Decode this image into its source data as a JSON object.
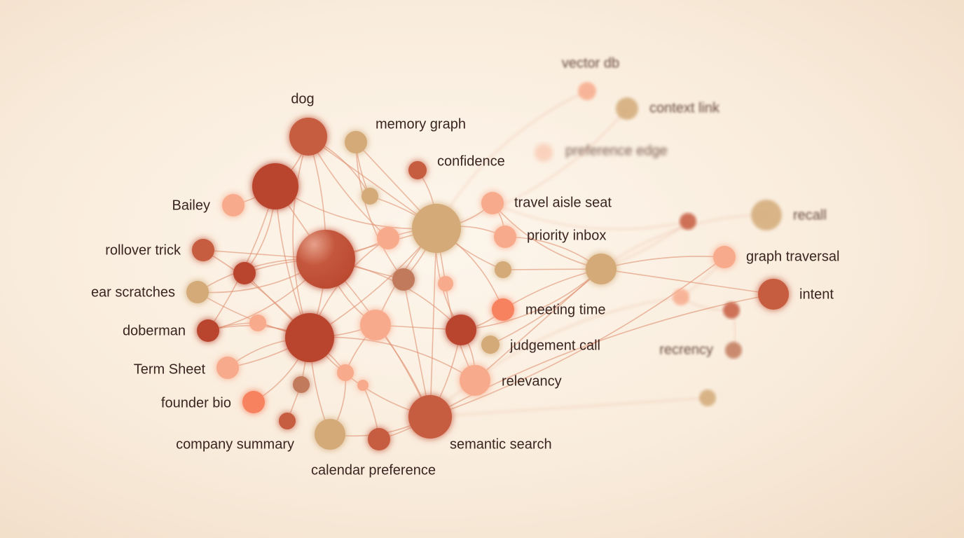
{
  "palette": {
    "rust": "#b9442e",
    "terracotta": "#c65b40",
    "salmon": "#f8ab8c",
    "orange": "#f6825f",
    "tan": "#d3aa78",
    "brown": "#c27a5c",
    "edge": "#e0906f"
  },
  "nodes": [
    {
      "id": "dog",
      "label": "dog",
      "tone": "terracotta"
    },
    {
      "id": "n1",
      "label": "",
      "tone": "rust"
    },
    {
      "id": "memory-graph",
      "label": "memory graph",
      "tone": "tan"
    },
    {
      "id": "confidence",
      "label": "confidence",
      "tone": "terracotta"
    },
    {
      "id": "n4",
      "label": "",
      "tone": "tan"
    },
    {
      "id": "bailey",
      "label": "Bailey",
      "tone": "salmon"
    },
    {
      "id": "n6",
      "label": "",
      "tone": "rust"
    },
    {
      "id": "n7",
      "label": "",
      "tone": "tan"
    },
    {
      "id": "n8",
      "label": "",
      "tone": "salmon"
    },
    {
      "id": "travel-aisle-seat",
      "label": "travel aisle seat",
      "tone": "salmon"
    },
    {
      "id": "priority-inbox",
      "label": "priority inbox",
      "tone": "salmon"
    },
    {
      "id": "rollover-trick",
      "label": "rollover trick",
      "tone": "terracotta"
    },
    {
      "id": "n12",
      "label": "",
      "tone": "rust"
    },
    {
      "id": "ear-scratches",
      "label": "ear scratches",
      "tone": "tan"
    },
    {
      "id": "n14",
      "label": "",
      "tone": "brown"
    },
    {
      "id": "n15",
      "label": "",
      "tone": "salmon"
    },
    {
      "id": "n16",
      "label": "",
      "tone": "tan"
    },
    {
      "id": "n17",
      "label": "",
      "tone": "rust"
    },
    {
      "id": "doberman",
      "label": "doberman",
      "tone": "rust"
    },
    {
      "id": "n19",
      "label": "",
      "tone": "salmon"
    },
    {
      "id": "n20",
      "label": "",
      "tone": "salmon"
    },
    {
      "id": "n21",
      "label": "",
      "tone": "rust"
    },
    {
      "id": "meeting-time",
      "label": "meeting time",
      "tone": "orange"
    },
    {
      "id": "judgement-call",
      "label": "judgement call",
      "tone": "tan"
    },
    {
      "id": "term-sheet",
      "label": "Term Sheet",
      "tone": "salmon"
    },
    {
      "id": "n25",
      "label": "",
      "tone": "salmon"
    },
    {
      "id": "n26",
      "label": "",
      "tone": "salmon"
    },
    {
      "id": "n27",
      "label": "",
      "tone": "brown"
    },
    {
      "id": "relevancy",
      "label": "relevancy",
      "tone": "salmon"
    },
    {
      "id": "founder-bio",
      "label": "founder bio",
      "tone": "orange"
    },
    {
      "id": "n30",
      "label": "",
      "tone": "terracotta"
    },
    {
      "id": "company-summary",
      "label": "company summary",
      "tone": "tan"
    },
    {
      "id": "calendar-preference",
      "label": "calendar preference",
      "tone": "terracotta"
    },
    {
      "id": "semantic-search",
      "label": "semantic search",
      "tone": "terracotta"
    },
    {
      "id": "n34",
      "label": "",
      "tone": "tan"
    },
    {
      "id": "vector-db",
      "label": "vector db",
      "tone": "salmon"
    },
    {
      "id": "context-link",
      "label": "context link",
      "tone": "tan"
    },
    {
      "id": "preference-edge",
      "label": "preference edge",
      "tone": "salmon"
    },
    {
      "id": "n38",
      "label": "",
      "tone": "terracotta"
    },
    {
      "id": "recall",
      "label": "recall",
      "tone": "tan"
    },
    {
      "id": "graph-traversal",
      "label": "graph traversal",
      "tone": "salmon"
    },
    {
      "id": "intent",
      "label": "intent",
      "tone": "terracotta"
    },
    {
      "id": "n42",
      "label": "",
      "tone": "salmon"
    },
    {
      "id": "n43",
      "label": "",
      "tone": "terracotta"
    },
    {
      "id": "recrency",
      "label": "recrency",
      "tone": "brown"
    },
    {
      "id": "n45",
      "label": "",
      "tone": "tan"
    }
  ],
  "edges": [
    [
      0,
      1
    ],
    [
      0,
      6
    ],
    [
      0,
      7
    ],
    [
      0,
      8
    ],
    [
      0,
      17
    ],
    [
      0,
      4
    ],
    [
      1,
      5
    ],
    [
      1,
      6
    ],
    [
      1,
      17
    ],
    [
      1,
      7
    ],
    [
      1,
      12
    ],
    [
      1,
      18
    ],
    [
      2,
      7
    ],
    [
      2,
      4
    ],
    [
      2,
      14
    ],
    [
      3,
      7
    ],
    [
      4,
      7
    ],
    [
      6,
      11
    ],
    [
      6,
      12
    ],
    [
      6,
      13
    ],
    [
      6,
      18
    ],
    [
      6,
      17
    ],
    [
      6,
      7
    ],
    [
      6,
      8
    ],
    [
      6,
      20
    ],
    [
      6,
      21
    ],
    [
      6,
      33
    ],
    [
      6,
      14
    ],
    [
      7,
      8
    ],
    [
      7,
      9
    ],
    [
      7,
      10
    ],
    [
      7,
      14
    ],
    [
      7,
      15
    ],
    [
      7,
      20
    ],
    [
      7,
      21
    ],
    [
      7,
      22
    ],
    [
      7,
      17
    ],
    [
      7,
      33
    ],
    [
      7,
      16
    ],
    [
      7,
      36
    ],
    [
      7,
      35
    ],
    [
      11,
      17
    ],
    [
      12,
      17
    ],
    [
      13,
      17
    ],
    [
      13,
      6
    ],
    [
      18,
      17
    ],
    [
      18,
      19
    ],
    [
      19,
      17
    ],
    [
      17,
      20
    ],
    [
      17,
      24
    ],
    [
      17,
      29
    ],
    [
      17,
      25
    ],
    [
      17,
      27
    ],
    [
      17,
      31
    ],
    [
      17,
      33
    ],
    [
      17,
      28
    ],
    [
      20,
      33
    ],
    [
      20,
      21
    ],
    [
      20,
      25
    ],
    [
      21,
      22
    ],
    [
      21,
      28
    ],
    [
      21,
      33
    ],
    [
      14,
      33
    ],
    [
      15,
      28
    ],
    [
      8,
      17
    ],
    [
      25,
      31
    ],
    [
      26,
      32
    ],
    [
      27,
      30
    ],
    [
      24,
      17
    ],
    [
      9,
      34
    ],
    [
      10,
      34
    ],
    [
      22,
      34
    ],
    [
      16,
      34
    ],
    [
      23,
      34
    ],
    [
      21,
      34
    ],
    [
      34,
      39
    ],
    [
      34,
      40
    ],
    [
      34,
      41
    ],
    [
      34,
      38
    ],
    [
      9,
      38
    ],
    [
      33,
      42
    ],
    [
      33,
      41
    ],
    [
      33,
      45
    ],
    [
      33,
      40
    ],
    [
      42,
      43
    ],
    [
      43,
      44
    ],
    [
      40,
      42
    ],
    [
      28,
      34
    ],
    [
      32,
      33
    ],
    [
      31,
      33
    ],
    [
      9,
      10
    ]
  ]
}
